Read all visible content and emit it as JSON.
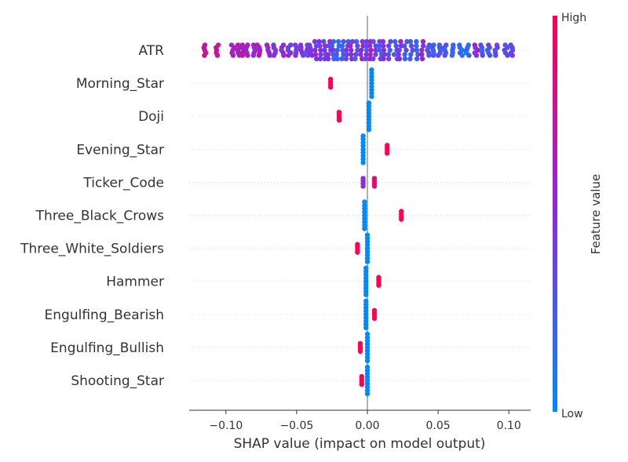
{
  "chart_data": {
    "type": "scatter",
    "subtype": "shap-beeswarm",
    "title": "",
    "xlabel": "SHAP value (impact on model output)",
    "ylabel": "",
    "xlim": [
      -0.125,
      0.115
    ],
    "xticks": [
      -0.1,
      -0.05,
      0.0,
      0.05,
      0.1
    ],
    "xtick_labels": [
      "−0.10",
      "−0.05",
      "0.00",
      "0.05",
      "0.10"
    ],
    "colorbar": {
      "label": "Feature value",
      "high": "High",
      "low": "Low",
      "colors": [
        "#008afb",
        "#8a2be2",
        "#ff0052"
      ]
    },
    "features": [
      {
        "name": "ATR",
        "clusters": [
          {
            "x": -0.115,
            "v": 0.8
          },
          {
            "x": -0.106,
            "v": 0.75
          },
          {
            "x": -0.095,
            "v": 0.6
          },
          {
            "x": -0.091,
            "v": 0.65
          },
          {
            "x": -0.088,
            "v": 0.7
          },
          {
            "x": -0.085,
            "v": 0.62
          },
          {
            "x": -0.08,
            "v": 0.55
          },
          {
            "x": -0.077,
            "v": 0.6
          },
          {
            "x": -0.07,
            "v": 0.58
          },
          {
            "x": -0.066,
            "v": 0.5
          },
          {
            "x": -0.06,
            "v": 0.52
          },
          {
            "x": -0.055,
            "v": 0.48
          },
          {
            "x": -0.05,
            "v": 0.45
          },
          {
            "x": -0.046,
            "v": 0.5
          },
          {
            "x": -0.043,
            "v": 0.42
          },
          {
            "x": -0.04,
            "v": 0.5
          },
          {
            "x": -0.037,
            "v": 0.45
          },
          {
            "x": -0.034,
            "v": 0.4
          },
          {
            "x": -0.03,
            "v": 0.35
          },
          {
            "x": -0.027,
            "v": 0.45
          },
          {
            "x": -0.024,
            "v": 0.3
          },
          {
            "x": -0.021,
            "v": 0.2
          },
          {
            "x": -0.017,
            "v": 0.25
          },
          {
            "x": -0.014,
            "v": 0.4
          },
          {
            "x": -0.011,
            "v": 0.5
          },
          {
            "x": -0.008,
            "v": 0.3
          },
          {
            "x": -0.004,
            "v": 0.55
          },
          {
            "x": -0.001,
            "v": 0.35
          },
          {
            "x": 0.002,
            "v": 0.6
          },
          {
            "x": 0.005,
            "v": 0.4
          },
          {
            "x": 0.009,
            "v": 0.3
          },
          {
            "x": 0.012,
            "v": 0.5
          },
          {
            "x": 0.016,
            "v": 0.35
          },
          {
            "x": 0.02,
            "v": 0.3
          },
          {
            "x": 0.023,
            "v": 0.45
          },
          {
            "x": 0.027,
            "v": 0.3
          },
          {
            "x": 0.031,
            "v": 0.35
          },
          {
            "x": 0.035,
            "v": 0.3
          },
          {
            "x": 0.039,
            "v": 0.5
          },
          {
            "x": 0.043,
            "v": 0.3
          },
          {
            "x": 0.047,
            "v": 0.25
          },
          {
            "x": 0.051,
            "v": 0.3
          },
          {
            "x": 0.055,
            "v": 0.2
          },
          {
            "x": 0.06,
            "v": 0.25
          },
          {
            "x": 0.066,
            "v": 0.2
          },
          {
            "x": 0.071,
            "v": 0.15
          },
          {
            "x": 0.077,
            "v": 0.6
          },
          {
            "x": 0.081,
            "v": 0.3
          },
          {
            "x": 0.086,
            "v": 0.25
          },
          {
            "x": 0.091,
            "v": 0.3
          },
          {
            "x": 0.098,
            "v": 0.3
          },
          {
            "x": 0.102,
            "v": 0.35
          }
        ]
      },
      {
        "name": "Morning_Star",
        "clusters": [
          {
            "x": -0.026,
            "v": 1.0
          },
          {
            "x": 0.003,
            "v": 0.0
          }
        ]
      },
      {
        "name": "Doji",
        "clusters": [
          {
            "x": -0.02,
            "v": 1.0
          },
          {
            "x": 0.001,
            "v": 0.0
          }
        ]
      },
      {
        "name": "Evening_Star",
        "clusters": [
          {
            "x": 0.014,
            "v": 1.0
          },
          {
            "x": -0.003,
            "v": 0.0
          }
        ]
      },
      {
        "name": "Ticker_Code",
        "clusters": [
          {
            "x": -0.003,
            "v": 0.5
          },
          {
            "x": 0.005,
            "v": 0.9
          }
        ]
      },
      {
        "name": "Three_Black_Crows",
        "clusters": [
          {
            "x": 0.024,
            "v": 1.0
          },
          {
            "x": -0.002,
            "v": 0.0
          }
        ]
      },
      {
        "name": "Three_White_Soldiers",
        "clusters": [
          {
            "x": -0.007,
            "v": 1.0
          },
          {
            "x": 0.0,
            "v": 0.0
          }
        ]
      },
      {
        "name": "Hammer",
        "clusters": [
          {
            "x": 0.008,
            "v": 1.0
          },
          {
            "x": -0.001,
            "v": 0.0
          }
        ]
      },
      {
        "name": "Engulfing_Bearish",
        "clusters": [
          {
            "x": 0.005,
            "v": 1.0
          },
          {
            "x": -0.001,
            "v": 0.0
          }
        ]
      },
      {
        "name": "Engulfing_Bullish",
        "clusters": [
          {
            "x": -0.005,
            "v": 1.0
          },
          {
            "x": 0.0,
            "v": 0.0
          }
        ]
      },
      {
        "name": "Shooting_Star",
        "clusters": [
          {
            "x": -0.004,
            "v": 1.0
          },
          {
            "x": 0.0,
            "v": 0.0
          }
        ]
      }
    ]
  }
}
